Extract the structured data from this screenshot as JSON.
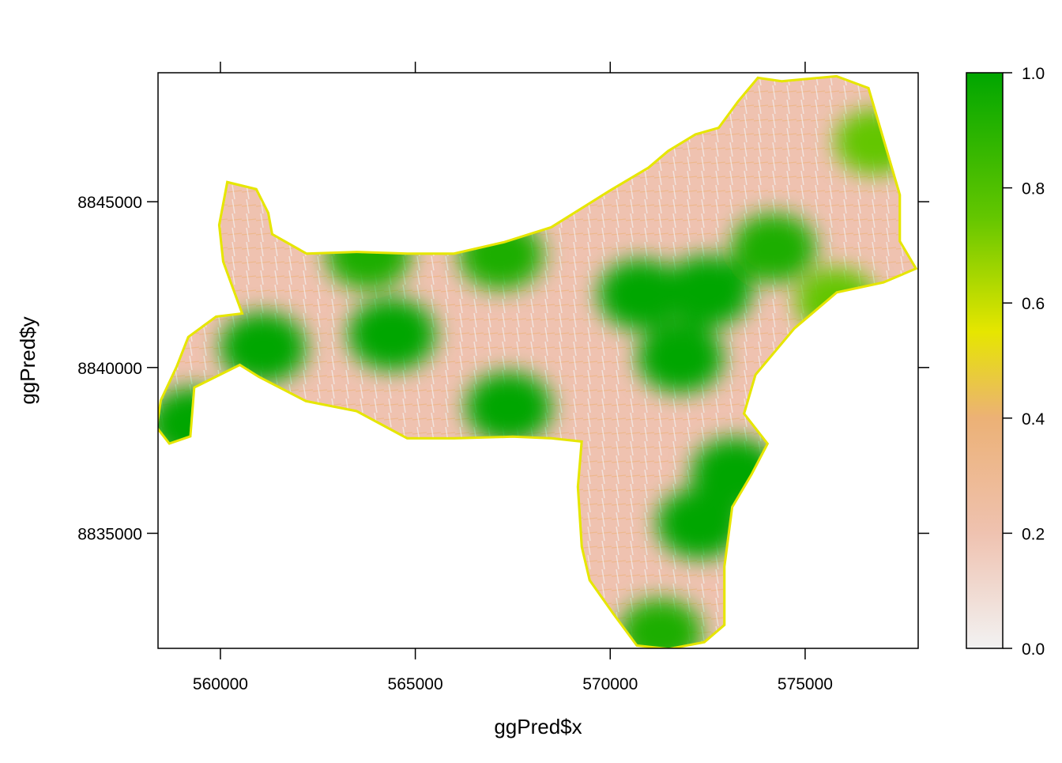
{
  "chart_data": {
    "type": "heatmap",
    "title": "",
    "xlabel": "ggPred$x",
    "ylabel": "ggPred$y",
    "xlim": [
      558400,
      577900
    ],
    "ylim": [
      8831530,
      8848890
    ],
    "x_ticks": [
      560000,
      565000,
      570000,
      575000
    ],
    "x_tick_labels": [
      "560000",
      "565000",
      "570000",
      "575000"
    ],
    "y_ticks": [
      8835000,
      8840000,
      8845000
    ],
    "y_tick_labels": [
      "8835000",
      "8840000",
      "8845000"
    ],
    "grid": false,
    "colorbar": {
      "placement": "right",
      "range": [
        0,
        1
      ],
      "ticks": [
        0.0,
        0.2,
        0.4,
        0.6,
        0.8,
        1.0
      ],
      "tick_labels": [
        "0.0",
        "0.2",
        "0.4",
        "0.6",
        "0.8",
        "1.0"
      ],
      "colors": [
        "#F2F2F2",
        "#EFC2B0",
        "#ECB176",
        "#E6E600",
        "#63C600",
        "#00A600"
      ]
    },
    "outline": [
      [
        559300,
        8839420
      ],
      [
        560500,
        8840120
      ],
      [
        561000,
        8839750
      ],
      [
        562200,
        8839020
      ],
      [
        563500,
        8838720
      ],
      [
        564800,
        8837900
      ],
      [
        566000,
        8837900
      ],
      [
        567500,
        8837950
      ],
      [
        568500,
        8837900
      ],
      [
        569300,
        8837800
      ],
      [
        569200,
        8836400
      ],
      [
        569300,
        8834600
      ],
      [
        569500,
        8833600
      ],
      [
        570100,
        8832600
      ],
      [
        570700,
        8831650
      ],
      [
        571500,
        8831550
      ],
      [
        572400,
        8831750
      ],
      [
        572900,
        8832250
      ],
      [
        572900,
        8834000
      ],
      [
        573100,
        8835800
      ],
      [
        573600,
        8836800
      ],
      [
        574000,
        8837700
      ],
      [
        573400,
        8838600
      ],
      [
        573700,
        8839800
      ],
      [
        574700,
        8841200
      ],
      [
        575800,
        8842300
      ],
      [
        577000,
        8842600
      ],
      [
        577800,
        8843000
      ],
      [
        577400,
        8843800
      ],
      [
        577400,
        8845200
      ],
      [
        577000,
        8846800
      ],
      [
        576600,
        8848400
      ],
      [
        575800,
        8848750
      ],
      [
        574400,
        8848600
      ],
      [
        573800,
        8848700
      ],
      [
        573300,
        8848000
      ],
      [
        572800,
        8847200
      ],
      [
        572200,
        8847000
      ],
      [
        571500,
        8846500
      ],
      [
        571000,
        8846000
      ],
      [
        570000,
        8845300
      ],
      [
        568500,
        8844200
      ],
      [
        567300,
        8843750
      ],
      [
        566000,
        8843400
      ],
      [
        564800,
        8843400
      ],
      [
        563500,
        8843450
      ],
      [
        562200,
        8843400
      ],
      [
        561300,
        8844000
      ],
      [
        561200,
        8844650
      ],
      [
        560900,
        8845350
      ],
      [
        560200,
        8845550
      ],
      [
        560000,
        8844300
      ],
      [
        560100,
        8843200
      ],
      [
        560600,
        8841600
      ],
      [
        559900,
        8841500
      ],
      [
        559200,
        8840900
      ],
      [
        558900,
        8840000
      ],
      [
        558500,
        8839000
      ],
      [
        558400,
        8838200
      ],
      [
        558700,
        8837750
      ],
      [
        559200,
        8837950
      ]
    ],
    "high_zones": [
      {
        "x": 564400,
        "y": 8841000,
        "value": 0.95
      },
      {
        "x": 567400,
        "y": 8838800,
        "value": 0.9
      },
      {
        "x": 559300,
        "y": 8838300,
        "value": 1.0
      },
      {
        "x": 561100,
        "y": 8840600,
        "value": 0.9
      },
      {
        "x": 563800,
        "y": 8843400,
        "value": 0.85
      },
      {
        "x": 567200,
        "y": 8843400,
        "value": 0.85
      },
      {
        "x": 570800,
        "y": 8842200,
        "value": 0.9
      },
      {
        "x": 572500,
        "y": 8842300,
        "value": 0.95
      },
      {
        "x": 571800,
        "y": 8840300,
        "value": 0.9
      },
      {
        "x": 574200,
        "y": 8843600,
        "value": 0.85
      },
      {
        "x": 573200,
        "y": 8836800,
        "value": 0.95
      },
      {
        "x": 572300,
        "y": 8835300,
        "value": 0.9
      },
      {
        "x": 575800,
        "y": 8842000,
        "value": 0.75
      },
      {
        "x": 576800,
        "y": 8846800,
        "value": 0.7
      },
      {
        "x": 571300,
        "y": 8832000,
        "value": 0.8
      }
    ]
  }
}
